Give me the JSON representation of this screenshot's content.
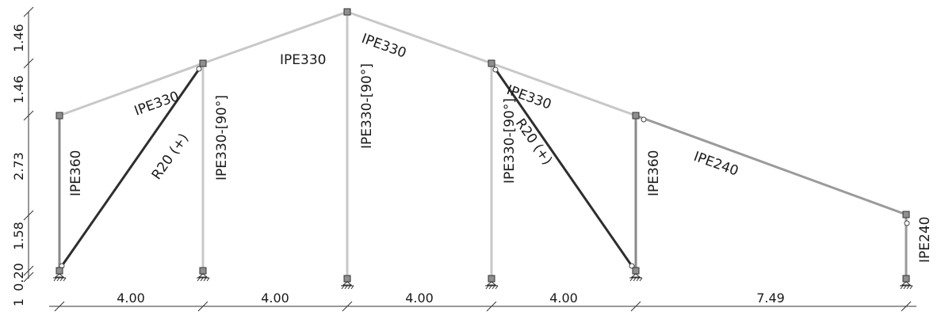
{
  "frame": {
    "vertical_dims": [
      "1.46",
      "1.46",
      "2.73",
      "1.58",
      "0.20",
      "1"
    ],
    "horizontal_dims": [
      "4.00",
      "4.00",
      "4.00",
      "4.00",
      "7.49"
    ],
    "member_labels": {
      "col1": "IPE360",
      "col2": "IPE330-[90°]",
      "col3": "IPE330-[90°]",
      "col4": "IPE330-[90°]",
      "col5": "IPE360",
      "col6": "IPE240",
      "rafter_left_a": "IPE330",
      "rafter_left_b": "IPE330",
      "rafter_right_a": "IPE330",
      "rafter_right_b": "IPE330",
      "rafter_end": "IPE240",
      "brace_left": "R20 (+)",
      "brace_right": "R20 (+)"
    }
  },
  "colors": {
    "light_member": "#c8c8c8",
    "mid_member": "#9a9a9a",
    "dark_member": "#2e2e2e",
    "node_fill": "#8f8f8f",
    "text": "#1a1a1a"
  }
}
